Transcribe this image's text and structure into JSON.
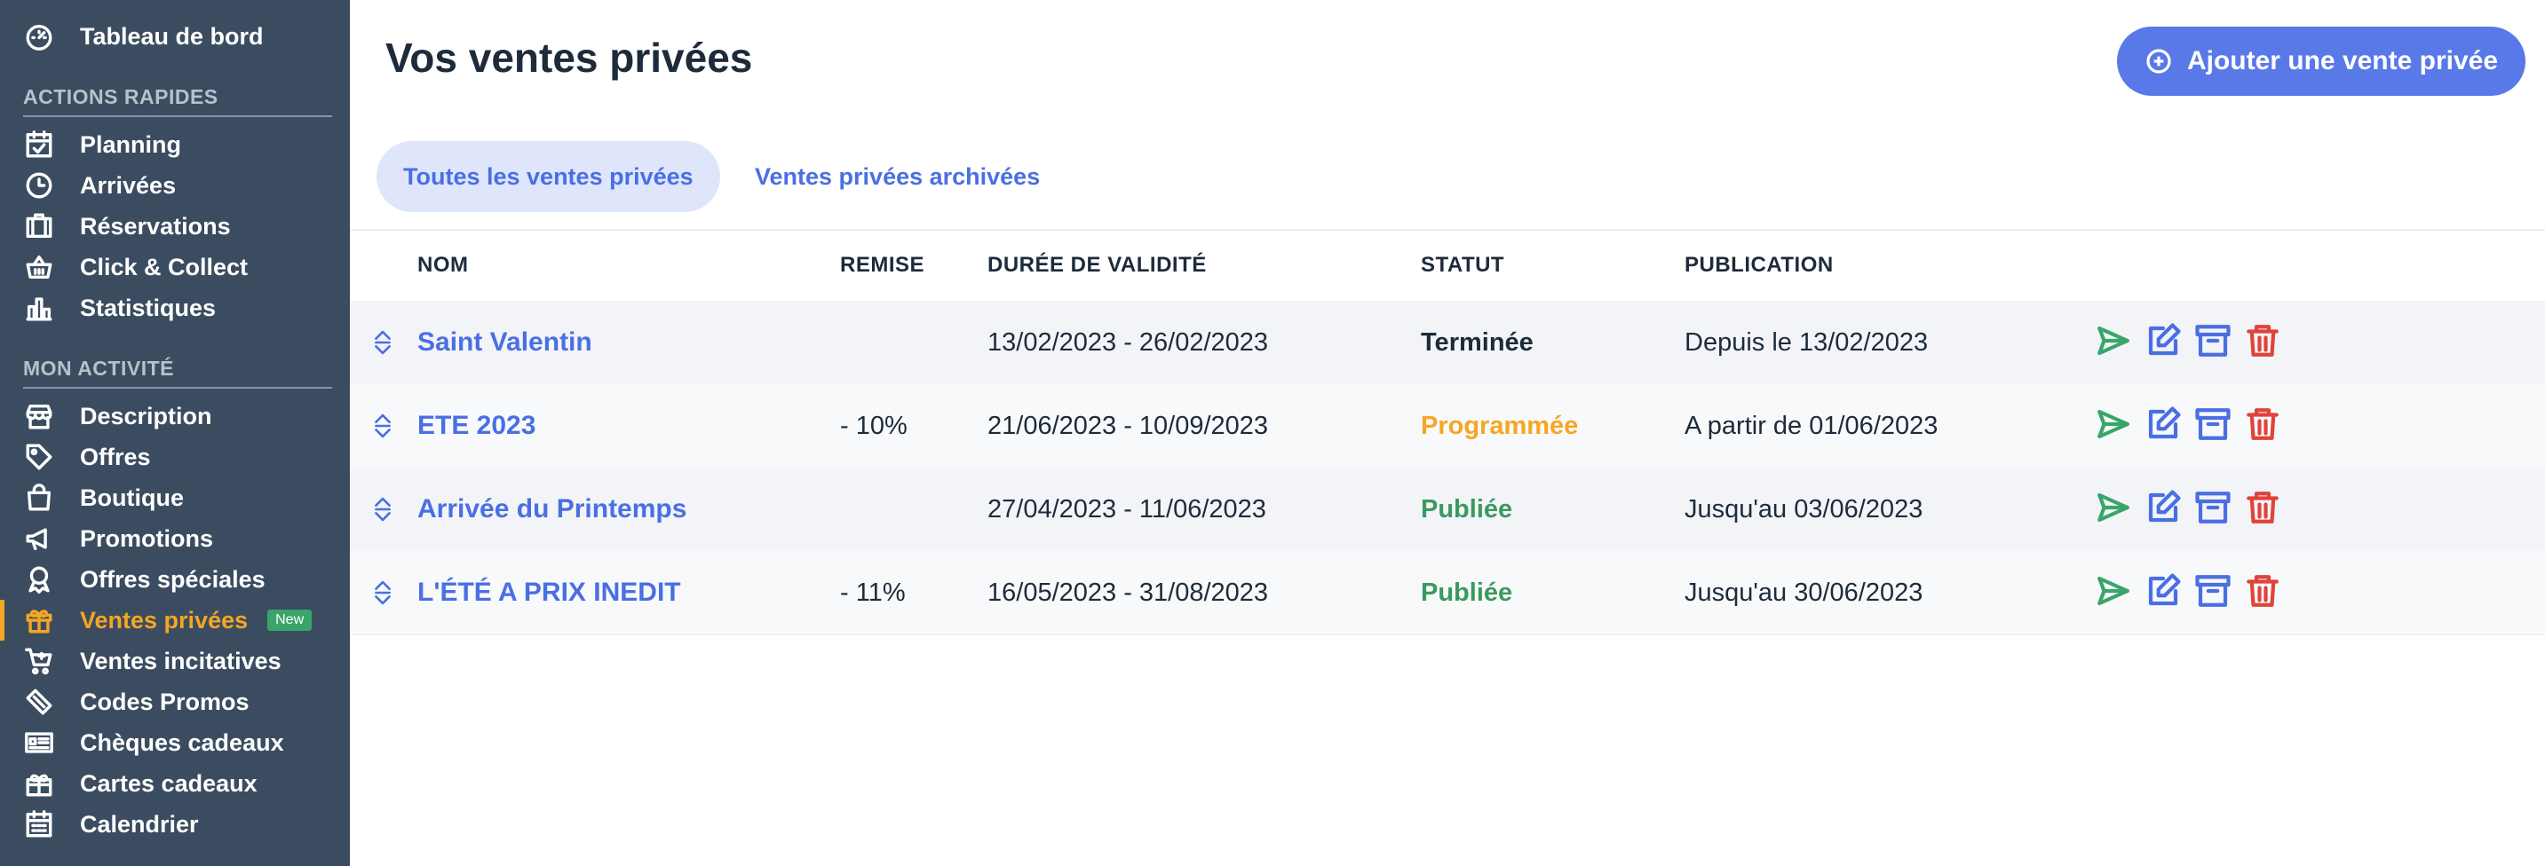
{
  "sidebar": {
    "top_item": {
      "label": "Tableau de bord",
      "icon": "dashboard-icon"
    },
    "sections": [
      {
        "title": "ACTIONS RAPIDES",
        "items": [
          {
            "label": "Planning",
            "icon": "calendar-check-icon"
          },
          {
            "label": "Arrivées",
            "icon": "clock-icon"
          },
          {
            "label": "Réservations",
            "icon": "suitcase-icon"
          },
          {
            "label": "Click & Collect",
            "icon": "basket-icon"
          },
          {
            "label": "Statistiques",
            "icon": "bar-chart-icon"
          }
        ]
      },
      {
        "title": "MON ACTIVITÉ",
        "items": [
          {
            "label": "Description",
            "icon": "store-icon"
          },
          {
            "label": "Offres",
            "icon": "tag-icon"
          },
          {
            "label": "Boutique",
            "icon": "shopping-bag-icon"
          },
          {
            "label": "Promotions",
            "icon": "megaphone-icon"
          },
          {
            "label": "Offres spéciales",
            "icon": "award-icon"
          },
          {
            "label": "Ventes privées",
            "icon": "gift-icon",
            "active": true,
            "badge": "New"
          },
          {
            "label": "Ventes incitatives",
            "icon": "cart-plus-icon"
          },
          {
            "label": "Codes Promos",
            "icon": "ticket-icon"
          },
          {
            "label": "Chèques cadeaux",
            "icon": "voucher-icon"
          },
          {
            "label": "Cartes cadeaux",
            "icon": "gift-card-icon"
          },
          {
            "label": "Calendrier",
            "icon": "calendar-icon"
          }
        ]
      }
    ]
  },
  "header": {
    "title": "Vos ventes privées",
    "add_button": "Ajouter une vente privée"
  },
  "tabs": [
    {
      "label": "Toutes les ventes privées",
      "active": true
    },
    {
      "label": "Ventes privées archivées",
      "active": false
    }
  ],
  "table": {
    "columns": [
      "NOM",
      "REMISE",
      "DURÉE DE VALIDITÉ",
      "STATUT",
      "PUBLICATION"
    ],
    "rows": [
      {
        "name": "Saint Valentin",
        "discount": "",
        "validity": "13/02/2023 - 26/02/2023",
        "status": "Terminée",
        "status_color": "#1d2b3a",
        "publication": "Depuis le 13/02/2023"
      },
      {
        "name": "ETE 2023",
        "discount": "- 10%",
        "validity": "21/06/2023 - 10/09/2023",
        "status": "Programmée",
        "status_color": "#f5a623",
        "publication": "A partir de 01/06/2023"
      },
      {
        "name": "Arrivée du Printemps",
        "discount": "",
        "validity": "27/04/2023 - 11/06/2023",
        "status": "Publiée",
        "status_color": "#3a9a5e",
        "publication": "Jusqu'au 03/06/2023"
      },
      {
        "name": "L'ÉTÉ A PRIX INEDIT",
        "discount": "- 11%",
        "validity": "16/05/2023 - 31/08/2023",
        "status": "Publiée",
        "status_color": "#3a9a5e",
        "publication": "Jusqu'au 30/06/2023"
      }
    ],
    "row_actions": [
      "send-icon",
      "edit-icon",
      "archive-icon",
      "trash-icon"
    ]
  },
  "colors": {
    "sidebar_bg": "#3b4c60",
    "accent": "#5a79e8",
    "active": "#f5a623",
    "danger": "#e0433a",
    "success": "#3aa56a"
  }
}
